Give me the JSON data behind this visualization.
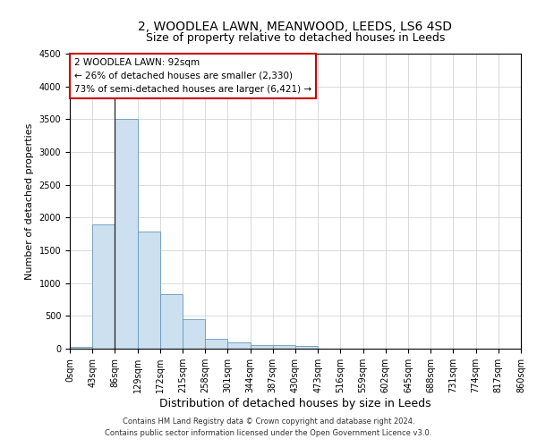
{
  "title": "2, WOODLEA LAWN, MEANWOOD, LEEDS, LS6 4SD",
  "subtitle": "Size of property relative to detached houses in Leeds",
  "xlabel": "Distribution of detached houses by size in Leeds",
  "ylabel": "Number of detached properties",
  "bar_color": "#cce0f0",
  "bar_edge_color": "#6699bb",
  "grid_color": "#cccccc",
  "background_color": "#ffffff",
  "bin_labels": [
    "0sqm",
    "43sqm",
    "86sqm",
    "129sqm",
    "172sqm",
    "215sqm",
    "258sqm",
    "301sqm",
    "344sqm",
    "387sqm",
    "430sqm",
    "473sqm",
    "516sqm",
    "559sqm",
    "602sqm",
    "645sqm",
    "688sqm",
    "731sqm",
    "774sqm",
    "817sqm",
    "860sqm"
  ],
  "bar_heights": [
    30,
    1900,
    3500,
    1780,
    830,
    455,
    155,
    95,
    60,
    50,
    35,
    0,
    0,
    0,
    0,
    0,
    0,
    0,
    0,
    0
  ],
  "ylim": [
    0,
    4500
  ],
  "yticks": [
    0,
    500,
    1000,
    1500,
    2000,
    2500,
    3000,
    3500,
    4000,
    4500
  ],
  "property_line_x": 2,
  "annotation_text": "2 WOODLEA LAWN: 92sqm\n← 26% of detached houses are smaller (2,330)\n73% of semi-detached houses are larger (6,421) →",
  "annotation_box_color": "#ffffff",
  "annotation_border_color": "#cc0000",
  "footer_line1": "Contains HM Land Registry data © Crown copyright and database right 2024.",
  "footer_line2": "Contains public sector information licensed under the Open Government Licence v3.0.",
  "title_fontsize": 10,
  "subtitle_fontsize": 9,
  "tick_label_fontsize": 7,
  "ylabel_fontsize": 8,
  "xlabel_fontsize": 9,
  "annotation_fontsize": 7.5,
  "footer_fontsize": 6
}
